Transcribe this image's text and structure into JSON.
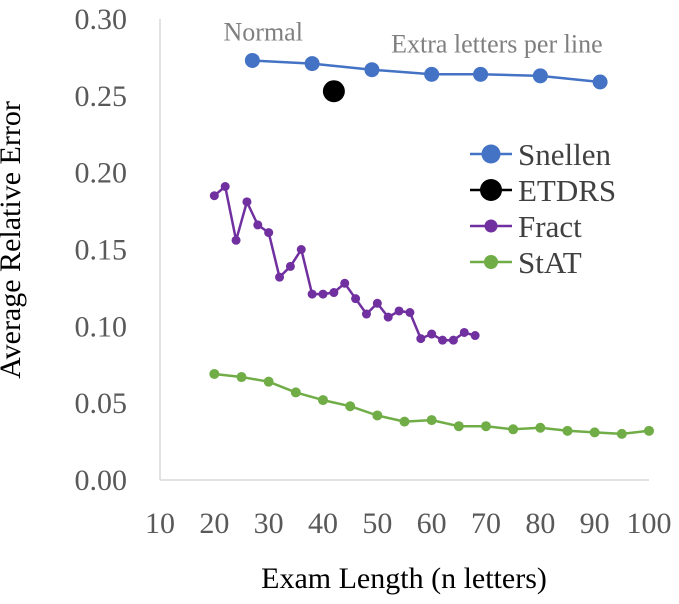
{
  "chart_data": {
    "type": "line",
    "title": "",
    "xlabel": "Exam Length (n letters)",
    "ylabel": "Average Relative Error",
    "xlim": [
      10,
      100
    ],
    "ylim": [
      0.0,
      0.3
    ],
    "xticks": [
      10,
      20,
      30,
      40,
      50,
      60,
      70,
      80,
      90,
      100
    ],
    "yticks": [
      "0.00",
      "0.05",
      "0.10",
      "0.15",
      "0.20",
      "0.25",
      "0.30"
    ],
    "grid": false,
    "legend_position": "right",
    "annotations": [
      {
        "text": "Normal",
        "x": 29,
        "y": 0.292
      },
      {
        "text": "Extra letters per line",
        "x": 72,
        "y": 0.284
      }
    ],
    "series": [
      {
        "name": "Snellen",
        "color": "#4472c4",
        "marker": "circle",
        "points": [
          [
            27,
            0.273
          ],
          [
            38,
            0.271
          ],
          [
            49,
            0.267
          ],
          [
            60,
            0.264
          ],
          [
            69,
            0.264
          ],
          [
            80,
            0.263
          ],
          [
            91,
            0.259
          ]
        ]
      },
      {
        "name": "ETDRS",
        "color": "#000000",
        "marker": "circle",
        "points": [
          [
            42,
            0.253
          ]
        ]
      },
      {
        "name": "Fract",
        "color": "#7030a0",
        "marker": "circle",
        "points": [
          [
            20,
            0.185
          ],
          [
            22,
            0.191
          ],
          [
            24,
            0.156
          ],
          [
            26,
            0.181
          ],
          [
            28,
            0.166
          ],
          [
            30,
            0.161
          ],
          [
            32,
            0.132
          ],
          [
            34,
            0.139
          ],
          [
            36,
            0.15
          ],
          [
            38,
            0.121
          ],
          [
            40,
            0.121
          ],
          [
            42,
            0.122
          ],
          [
            44,
            0.128
          ],
          [
            46,
            0.118
          ],
          [
            48,
            0.108
          ],
          [
            50,
            0.115
          ],
          [
            52,
            0.106
          ],
          [
            54,
            0.11
          ],
          [
            56,
            0.109
          ],
          [
            58,
            0.092
          ],
          [
            60,
            0.095
          ],
          [
            62,
            0.091
          ],
          [
            64,
            0.091
          ],
          [
            66,
            0.096
          ],
          [
            68,
            0.094
          ]
        ]
      },
      {
        "name": "StAT",
        "color": "#70ad47",
        "marker": "circle",
        "points": [
          [
            20,
            0.069
          ],
          [
            25,
            0.067
          ],
          [
            30,
            0.064
          ],
          [
            35,
            0.057
          ],
          [
            40,
            0.052
          ],
          [
            45,
            0.048
          ],
          [
            50,
            0.042
          ],
          [
            55,
            0.038
          ],
          [
            60,
            0.039
          ],
          [
            65,
            0.035
          ],
          [
            70,
            0.035
          ],
          [
            75,
            0.033
          ],
          [
            80,
            0.034
          ],
          [
            85,
            0.032
          ],
          [
            90,
            0.031
          ],
          [
            95,
            0.03
          ],
          [
            100,
            0.032
          ]
        ]
      }
    ]
  }
}
